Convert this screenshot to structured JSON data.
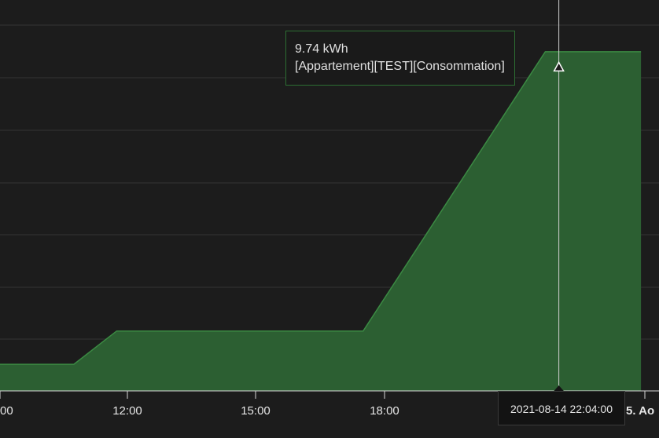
{
  "chart_data": {
    "type": "area",
    "title": "",
    "xlabel": "",
    "ylabel": "",
    "grid": true,
    "colors": {
      "background": "#1c1c1c",
      "area_fill": "#2c5f32",
      "area_stroke": "#3b8a43",
      "grid": "#333333",
      "crosshair": "#cfcfcf"
    },
    "x_ticks": [
      "00",
      "12:00",
      "15:00",
      "18:00",
      "5. Ao"
    ],
    "series": [
      {
        "name": "[Appartement][TEST][Consommation]",
        "x": [
          "09:00",
          "10:45",
          "11:45",
          "17:30",
          "21:45",
          "23:59"
        ],
        "values": [
          0.8,
          0.8,
          1.8,
          1.8,
          10.2,
          10.2
        ]
      }
    ],
    "tooltip": {
      "value": "9.74 kWh",
      "series": "[Appartement][TEST][Consommation]",
      "x": "2021-08-14 22:04:00"
    }
  }
}
